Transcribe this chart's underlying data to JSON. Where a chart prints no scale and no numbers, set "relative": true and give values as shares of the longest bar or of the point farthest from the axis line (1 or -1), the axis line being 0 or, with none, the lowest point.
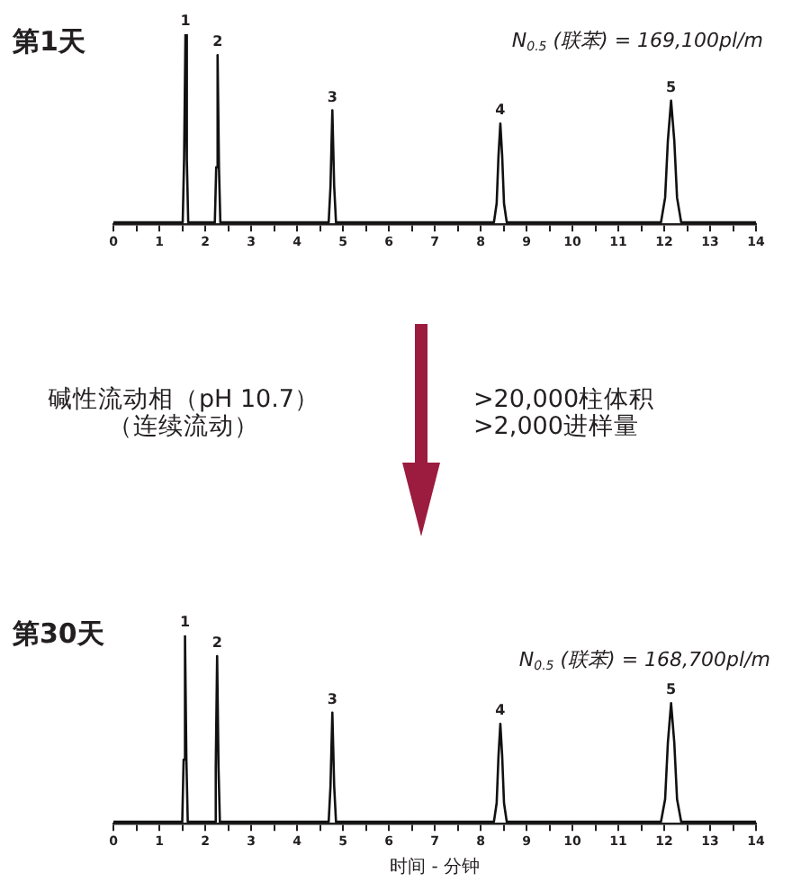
{
  "chart_data": [
    {
      "type": "line",
      "title": "第1天",
      "relative": true,
      "color": "#111111",
      "x": [
        0,
        1.51,
        1.54,
        1.57,
        1.6,
        1.63,
        2.21,
        2.24,
        2.27,
        2.3,
        2.33,
        4.69,
        4.73,
        4.77,
        4.81,
        4.85,
        8.29,
        8.35,
        8.39,
        8.43,
        8.47,
        8.51,
        8.57,
        11.93,
        12.02,
        12.08,
        12.15,
        12.22,
        12.28,
        12.37,
        14
      ],
      "values": [
        0.01,
        0.01,
        0.34,
        1.0,
        0.34,
        0.01,
        0.01,
        0.3,
        0.89,
        0.3,
        0.01,
        0.01,
        0.2,
        0.6,
        0.2,
        0.01,
        0.01,
        0.11,
        0.36,
        0.53,
        0.36,
        0.11,
        0.01,
        0.01,
        0.14,
        0.44,
        0.65,
        0.44,
        0.14,
        0.01,
        0.01
      ],
      "xlim": [
        0,
        14
      ],
      "xticks": [
        0,
        {
          "value": 0.5,
          "label": null
        },
        1,
        {
          "value": 1.5,
          "label": null
        },
        2,
        {
          "value": 2.5,
          "label": null
        },
        3,
        {
          "value": 3.5,
          "label": null
        },
        4,
        {
          "value": 4.5,
          "label": null
        },
        5,
        {
          "value": 5.5,
          "label": null
        },
        6,
        {
          "value": 6.5,
          "label": null
        },
        7,
        {
          "value": 7.5,
          "label": null
        },
        8,
        {
          "value": 8.5,
          "label": null
        },
        9,
        {
          "value": 9.5,
          "label": null
        },
        10,
        {
          "value": 10.5,
          "label": null
        },
        11,
        {
          "value": 11.5,
          "label": null
        },
        12,
        {
          "value": 12.5,
          "label": null
        },
        13,
        {
          "value": 13.5,
          "label": null
        },
        14
      ],
      "annotations": [
        "N$_{0.5}$ (联苯) = 169,100pl/m",
        {
          "text": "1",
          "x": 1.57,
          "y": 1.0
        },
        {
          "text": "2",
          "x": 2.27,
          "y": 0.89
        },
        {
          "text": "3",
          "x": 4.77,
          "y": 0.6
        },
        {
          "text": "4",
          "x": 8.43,
          "y": 0.53
        },
        {
          "text": "5",
          "x": 12.15,
          "y": 0.65
        }
      ]
    },
    {
      "type": "other",
      "annotations": [
        "碱性流动相（pH 10.7）",
        "（连续流动）",
        ">20,000柱体积",
        ">2,000进样量"
      ]
    },
    {
      "type": "line",
      "title": "第30天",
      "xlabel": "时间 - 分钟",
      "relative": true,
      "color": "#111111",
      "x": [
        0,
        1.5,
        1.53,
        1.56,
        1.59,
        1.62,
        2.2,
        2.23,
        2.26,
        2.29,
        2.32,
        4.69,
        4.73,
        4.77,
        4.81,
        4.85,
        8.29,
        8.35,
        8.39,
        8.43,
        8.47,
        8.51,
        8.57,
        11.93,
        12.02,
        12.08,
        12.15,
        12.22,
        12.28,
        12.37,
        14
      ],
      "values": [
        0.01,
        0.01,
        0.34,
        1.0,
        0.34,
        0.01,
        0.01,
        0.3,
        0.89,
        0.3,
        0.01,
        0.01,
        0.2,
        0.59,
        0.2,
        0.01,
        0.01,
        0.11,
        0.36,
        0.53,
        0.36,
        0.11,
        0.01,
        0.01,
        0.13,
        0.43,
        0.64,
        0.43,
        0.13,
        0.01,
        0.01
      ],
      "xlim": [
        0,
        14
      ],
      "xticks": [
        0,
        {
          "value": 0.5,
          "label": null
        },
        1,
        {
          "value": 1.5,
          "label": null
        },
        2,
        {
          "value": 2.5,
          "label": null
        },
        3,
        {
          "value": 3.5,
          "label": null
        },
        4,
        {
          "value": 4.5,
          "label": null
        },
        5,
        {
          "value": 5.5,
          "label": null
        },
        6,
        {
          "value": 6.5,
          "label": null
        },
        7,
        {
          "value": 7.5,
          "label": null
        },
        8,
        {
          "value": 8.5,
          "label": null
        },
        9,
        {
          "value": 9.5,
          "label": null
        },
        10,
        {
          "value": 10.5,
          "label": null
        },
        11,
        {
          "value": 11.5,
          "label": null
        },
        12,
        {
          "value": 12.5,
          "label": null
        },
        13,
        {
          "value": 13.5,
          "label": null
        },
        14
      ],
      "annotations": [
        "N$_{0.5}$ (联苯) = 168,700pl/m",
        {
          "text": "1",
          "x": 1.56,
          "y": 1.0
        },
        {
          "text": "2",
          "x": 2.26,
          "y": 0.89
        },
        {
          "text": "3",
          "x": 4.77,
          "y": 0.59
        },
        {
          "text": "4",
          "x": 8.43,
          "y": 0.53
        },
        {
          "text": "5",
          "x": 12.15,
          "y": 0.64
        }
      ]
    }
  ]
}
